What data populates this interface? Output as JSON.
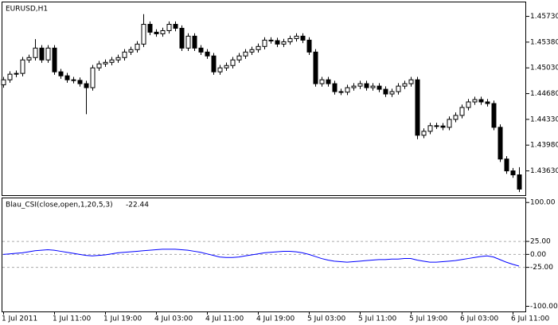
{
  "chart_data": [
    {
      "type": "candlestick",
      "title": "EURUSD,H1",
      "color_up": "#ffffff",
      "color_down": "#000000",
      "open": [
        1.448,
        1.44868,
        1.44944,
        1.44955,
        1.45138,
        1.4517,
        1.45299,
        1.45138,
        1.45299,
        1.44976,
        1.44922,
        1.44868,
        1.4486,
        1.44815,
        1.44761,
        1.4503,
        1.45084,
        1.45105,
        1.45138,
        1.4517,
        1.45245,
        1.45278,
        1.45353,
        1.45622,
        1.45515,
        1.45493,
        1.45536,
        1.45622,
        1.45568,
        1.45299,
        1.45461,
        1.45299,
        1.45245,
        1.45192,
        1.44976,
        1.4503,
        1.45062,
        1.45138,
        1.45192,
        1.45245,
        1.45278,
        1.45321,
        1.45407,
        1.454,
        1.45353,
        1.45385,
        1.45428,
        1.45461,
        1.45407,
        1.45245,
        1.44815,
        1.44868,
        1.44815,
        1.44707,
        1.447,
        1.44761,
        1.44782,
        1.44815,
        1.44761,
        1.44782,
        1.44739,
        1.44675,
        1.44707,
        1.44782,
        1.44815,
        1.44868,
        1.44114,
        1.44168,
        1.44244,
        1.4424,
        1.44222,
        1.4433,
        1.44384,
        1.44492,
        1.44567,
        1.44599,
        1.44567,
        1.44545,
        1.44222,
        1.43791,
        1.4363,
        1.43576
      ],
      "high": [
        1.44908,
        1.44984,
        1.44995,
        1.45178,
        1.4521,
        1.4542,
        1.45339,
        1.45339,
        1.45339,
        1.45016,
        1.44962,
        1.44908,
        1.449,
        1.44855,
        1.4507,
        1.45124,
        1.45145,
        1.45178,
        1.4521,
        1.45285,
        1.45318,
        1.45393,
        1.4576,
        1.45662,
        1.45555,
        1.45576,
        1.45662,
        1.45662,
        1.45608,
        1.45501,
        1.45501,
        1.45339,
        1.45285,
        1.45232,
        1.4507,
        1.45102,
        1.45178,
        1.45232,
        1.45285,
        1.45318,
        1.45361,
        1.45447,
        1.45447,
        1.4544,
        1.45425,
        1.45468,
        1.45501,
        1.45501,
        1.45447,
        1.45285,
        1.44908,
        1.44908,
        1.44855,
        1.44747,
        1.44801,
        1.44822,
        1.44855,
        1.44855,
        1.44822,
        1.44822,
        1.44779,
        1.44747,
        1.44822,
        1.44855,
        1.44908,
        1.44908,
        1.44208,
        1.44284,
        1.44284,
        1.4428,
        1.4437,
        1.44424,
        1.44532,
        1.44607,
        1.44639,
        1.44639,
        1.44607,
        1.44585,
        1.44262,
        1.43831,
        1.4367,
        1.4368
      ],
      "low": [
        1.4476,
        1.44828,
        1.44904,
        1.44915,
        1.45098,
        1.4513,
        1.45098,
        1.45098,
        1.44936,
        1.44882,
        1.44828,
        1.4482,
        1.44775,
        1.444,
        1.44721,
        1.4499,
        1.45044,
        1.45065,
        1.45098,
        1.4513,
        1.45205,
        1.45238,
        1.45313,
        1.45475,
        1.45453,
        1.45453,
        1.45496,
        1.45528,
        1.45259,
        1.45259,
        1.45259,
        1.45205,
        1.45152,
        1.44936,
        1.44936,
        1.4499,
        1.45022,
        1.45098,
        1.45152,
        1.45205,
        1.45238,
        1.45281,
        1.4536,
        1.45313,
        1.45313,
        1.45345,
        1.45388,
        1.45367,
        1.45205,
        1.44775,
        1.44775,
        1.44775,
        1.44667,
        1.4466,
        1.4466,
        1.44721,
        1.44742,
        1.44721,
        1.44721,
        1.44699,
        1.44635,
        1.44635,
        1.44667,
        1.44742,
        1.44775,
        1.4406,
        1.44074,
        1.44128,
        1.442,
        1.44182,
        1.44182,
        1.4429,
        1.44344,
        1.44452,
        1.44527,
        1.44527,
        1.44505,
        1.44182,
        1.43751,
        1.4359,
        1.43536,
        1.43342
      ],
      "close": [
        1.44868,
        1.44944,
        1.44955,
        1.45138,
        1.4517,
        1.45299,
        1.45138,
        1.45299,
        1.44976,
        1.44922,
        1.44868,
        1.4486,
        1.44815,
        1.44761,
        1.4503,
        1.45084,
        1.45105,
        1.45138,
        1.4517,
        1.45245,
        1.45278,
        1.45353,
        1.45622,
        1.45515,
        1.45493,
        1.45536,
        1.45622,
        1.45568,
        1.45299,
        1.45461,
        1.45299,
        1.45245,
        1.45192,
        1.44976,
        1.4503,
        1.45062,
        1.45138,
        1.45192,
        1.45245,
        1.45278,
        1.45321,
        1.45407,
        1.454,
        1.45353,
        1.45385,
        1.45428,
        1.45461,
        1.45407,
        1.45245,
        1.44815,
        1.44868,
        1.44815,
        1.44707,
        1.447,
        1.44761,
        1.44782,
        1.44815,
        1.44761,
        1.44782,
        1.44739,
        1.44675,
        1.44707,
        1.44782,
        1.44815,
        1.44868,
        1.44114,
        1.44168,
        1.44244,
        1.4424,
        1.44222,
        1.4433,
        1.44384,
        1.44492,
        1.44567,
        1.44599,
        1.44567,
        1.44545,
        1.44222,
        1.43791,
        1.4363,
        1.43576,
        1.43382
      ],
      "ylim": [
        1.433,
        1.4592
      ],
      "yticks": [
        {
          "value": 1.4573,
          "label": "1.45730"
        },
        {
          "value": 1.4538,
          "label": "1.45380"
        },
        {
          "value": 1.4503,
          "label": "1.45030"
        },
        {
          "value": 1.4468,
          "label": "1.44680"
        },
        {
          "value": 1.4433,
          "label": "1.44330"
        },
        {
          "value": 1.4398,
          "label": "1.43980"
        },
        {
          "value": 1.4363,
          "label": "1.43630"
        }
      ]
    },
    {
      "type": "line",
      "title": "Blau_CSI(close,open,1,20,5,3)",
      "categories": [
        "1 Jul 2011",
        null,
        null,
        null,
        null,
        null,
        null,
        null,
        "1 Jul 11:00",
        null,
        null,
        null,
        null,
        null,
        null,
        null,
        "1 Jul 19:00",
        null,
        null,
        null,
        null,
        null,
        null,
        null,
        "4 Jul 03:00",
        null,
        null,
        null,
        null,
        null,
        null,
        null,
        "4 Jul 11:00",
        null,
        null,
        null,
        null,
        null,
        null,
        null,
        "4 Jul 19:00",
        null,
        null,
        null,
        null,
        null,
        null,
        null,
        "5 Jul 03:00",
        null,
        null,
        null,
        null,
        null,
        null,
        null,
        "5 Jul 11:00",
        null,
        null,
        null,
        null,
        null,
        null,
        null,
        "5 Jul 19:00",
        null,
        null,
        null,
        null,
        null,
        null,
        null,
        "6 Jul 03:00",
        null,
        null,
        null,
        null,
        null,
        null,
        null,
        "6 Jul 11:00",
        null
      ],
      "series": [
        {
          "color": "#0000ff",
          "values": [
            0,
            1,
            2,
            3,
            5,
            7,
            8,
            9,
            8,
            6,
            4,
            2,
            0,
            -2,
            -3,
            -2,
            -1,
            1,
            3,
            4,
            5,
            6,
            7,
            8,
            9,
            10,
            10,
            10,
            9,
            8,
            6,
            4,
            1,
            -2,
            -5,
            -6,
            -6,
            -5,
            -3,
            -1,
            1,
            3,
            4,
            5,
            6,
            6,
            5,
            3,
            0,
            -4,
            -8,
            -11,
            -13,
            -14,
            -15,
            -14,
            -13,
            -12,
            -11,
            -10,
            -10,
            -9,
            -9,
            -8,
            -8,
            -11,
            -13,
            -15,
            -15,
            -14,
            -13,
            -12,
            -10,
            -8,
            -6,
            -4,
            -3,
            -5,
            -10,
            -15,
            -19,
            -22.44
          ]
        }
      ],
      "ylim": [
        -110,
        108
      ],
      "yticks": [
        {
          "value": 100,
          "label": "100.00"
        },
        {
          "value": 25,
          "label": "25.00"
        },
        {
          "value": 0,
          "label": "0.00"
        },
        {
          "value": -25,
          "label": "-25.00"
        },
        {
          "value": -100,
          "label": "-100.00"
        }
      ]
    }
  ]
}
